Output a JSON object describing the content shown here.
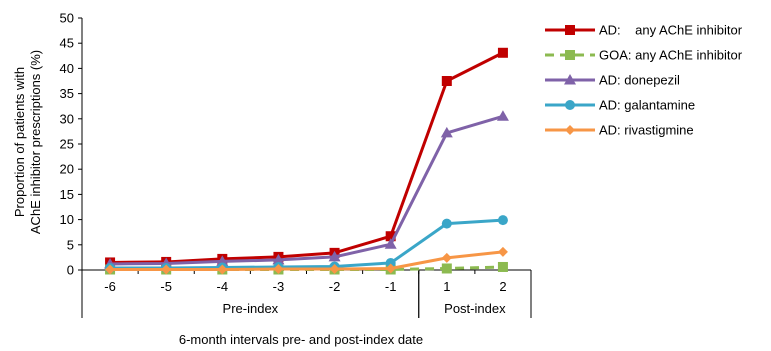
{
  "chart_data": {
    "type": "line",
    "title": "",
    "ylabel_lines": [
      "Proportion of patients with",
      "AChE inhibitor prescriptions (%)"
    ],
    "xlabel": "6-month intervals pre- and post-index date",
    "categories": [
      "-6",
      "-5",
      "-4",
      "-3",
      "-2",
      "-1",
      "1",
      "2"
    ],
    "groups": [
      {
        "label": "Pre-index",
        "categories": [
          "-6",
          "-5",
          "-4",
          "-3",
          "-2",
          "-1"
        ]
      },
      {
        "label": "Post-index",
        "categories": [
          "1",
          "2"
        ]
      }
    ],
    "ylim": [
      0,
      50
    ],
    "yticks": [
      0,
      5,
      10,
      15,
      20,
      25,
      30,
      35,
      40,
      45,
      50
    ],
    "grid": false,
    "legend_position": "right",
    "series": [
      {
        "name": "AD:    any AChE inhibitor",
        "color": "#c00000",
        "marker": "square",
        "dashed": false,
        "values": [
          1.5,
          1.6,
          2.2,
          2.6,
          3.4,
          6.7,
          37.5,
          43.1
        ]
      },
      {
        "name": "GOA: any AChE inhibitor",
        "color": "#8cba50",
        "marker": "square",
        "dashed": true,
        "values": [
          0.1,
          0.1,
          0.1,
          0.1,
          0.1,
          0.1,
          0.3,
          0.6
        ]
      },
      {
        "name": "AD: donepezil",
        "color": "#7f62a8",
        "marker": "triangle",
        "dashed": false,
        "values": [
          1.2,
          1.3,
          1.7,
          2.0,
          2.6,
          5.1,
          27.2,
          30.5
        ]
      },
      {
        "name": "AD: galantamine",
        "color": "#3aa6c8",
        "marker": "circle",
        "dashed": false,
        "values": [
          0.4,
          0.4,
          0.5,
          0.6,
          0.7,
          1.4,
          9.2,
          9.9
        ]
      },
      {
        "name": "AD: rivastigmine",
        "color": "#f79646",
        "marker": "diamond",
        "dashed": false,
        "values": [
          0.1,
          0.1,
          0.1,
          0.2,
          0.2,
          0.3,
          2.4,
          3.6
        ]
      }
    ]
  }
}
